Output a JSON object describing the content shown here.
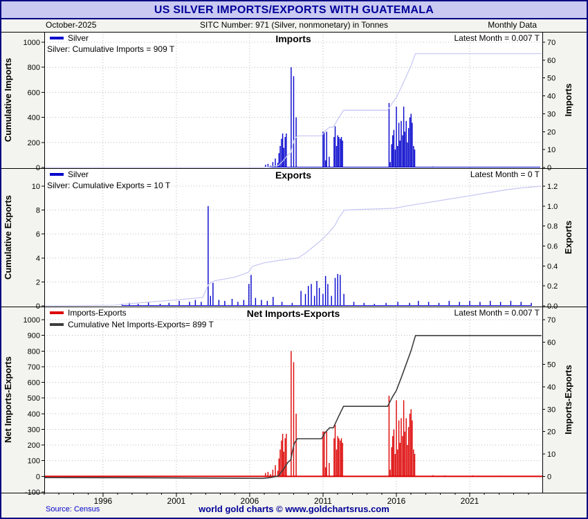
{
  "window": {
    "title": "US SILVER IMPORTS/EXPORTS WITH GUATEMALA",
    "subheader": {
      "left": "October-2025",
      "center": "SITC Number: 971 (Silver, nonmonetary) in Tonnes",
      "right": "Monthly Data"
    },
    "footer": {
      "source": "Source: Census",
      "brand": "world gold charts © www.goldchartsrus.com"
    }
  },
  "colors": {
    "accent_navy": "#000099",
    "titlebar_bg": "#c9c9f2",
    "page_bg": "#f3f3ef",
    "panel_bg": "#ffffff",
    "grid": "#b8b8b8",
    "bar_blue": "#0000cc",
    "line_lavender": "#c9c9f4",
    "bar_red": "#dd0000",
    "line_dark": "#3d3d3d"
  },
  "chart_data": {
    "type": "bar",
    "x_axis": {
      "min": 1992.0,
      "max": 2025.95,
      "ticks": [
        1996,
        2001,
        2006,
        2011,
        2016,
        2021
      ]
    },
    "panels": [
      {
        "id": "imports",
        "title": "Imports",
        "latest_label": "Latest Month = 0.007 T",
        "annotation": "Silver: Cumulative Imports = 909 T",
        "legend": [
          {
            "label": "Silver",
            "color": "#0000cc"
          }
        ],
        "left_axis": {
          "label": "Cumulative Imports",
          "min": 0,
          "max": 1000,
          "ticks": [
            0,
            200,
            400,
            600,
            800,
            1000
          ],
          "decimals": 0
        },
        "right_axis": {
          "label": "Imports",
          "min": 0,
          "max": 70,
          "ticks": [
            0,
            10,
            20,
            30,
            40,
            50,
            60,
            70
          ],
          "decimals": 0
        },
        "bar_color": "#0000cc",
        "line_color": "#c9c9f4",
        "bars": [
          [
            2007.08,
            1.5
          ],
          [
            2007.25,
            2
          ],
          [
            2007.42,
            1
          ],
          [
            2007.58,
            3
          ],
          [
            2007.75,
            5
          ],
          [
            2007.92,
            2.5
          ],
          [
            2008.0,
            8
          ],
          [
            2008.08,
            12
          ],
          [
            2008.17,
            16
          ],
          [
            2008.25,
            19
          ],
          [
            2008.33,
            11
          ],
          [
            2008.42,
            17
          ],
          [
            2008.5,
            19
          ],
          [
            2008.83,
            56
          ],
          [
            2009.0,
            51
          ],
          [
            2009.17,
            28
          ],
          [
            2011.0,
            20
          ],
          [
            2011.08,
            20
          ],
          [
            2011.17,
            4
          ],
          [
            2011.25,
            20
          ],
          [
            2011.42,
            6
          ],
          [
            2011.75,
            17
          ],
          [
            2011.83,
            23
          ],
          [
            2011.92,
            12
          ],
          [
            2012.0,
            18
          ],
          [
            2012.08,
            17
          ],
          [
            2012.17,
            16
          ],
          [
            2012.25,
            17
          ],
          [
            2012.33,
            15
          ],
          [
            2015.5,
            36
          ],
          [
            2015.58,
            3
          ],
          [
            2015.67,
            13
          ],
          [
            2015.75,
            18
          ],
          [
            2015.83,
            21
          ],
          [
            2015.92,
            10
          ],
          [
            2016.0,
            34
          ],
          [
            2016.08,
            12
          ],
          [
            2016.17,
            25
          ],
          [
            2016.25,
            15
          ],
          [
            2016.33,
            26
          ],
          [
            2016.42,
            18
          ],
          [
            2016.5,
            34
          ],
          [
            2016.58,
            20
          ],
          [
            2016.67,
            26
          ],
          [
            2016.75,
            14
          ],
          [
            2016.83,
            22
          ],
          [
            2016.92,
            28
          ],
          [
            2017.0,
            30
          ],
          [
            2017.08,
            25
          ],
          [
            2017.17,
            12
          ],
          [
            2017.25,
            10
          ],
          [
            2018.5,
            0.5
          ],
          [
            2019.3,
            0.4
          ],
          [
            2021.2,
            0.4
          ],
          [
            2023.1,
            0.3
          ],
          [
            2025.79,
            0.007
          ]
        ],
        "cumulative": [
          [
            1992.0,
            0
          ],
          [
            2006.9,
            0
          ],
          [
            2007.4,
            6
          ],
          [
            2007.95,
            15
          ],
          [
            2008.3,
            55
          ],
          [
            2008.6,
            100
          ],
          [
            2008.8,
            117
          ],
          [
            2008.92,
            173
          ],
          [
            2009.05,
            224
          ],
          [
            2009.25,
            252
          ],
          [
            2010.9,
            252
          ],
          [
            2011.15,
            292
          ],
          [
            2011.45,
            322
          ],
          [
            2011.7,
            322
          ],
          [
            2012.05,
            392
          ],
          [
            2012.4,
            457
          ],
          [
            2015.4,
            457
          ],
          [
            2015.75,
            520
          ],
          [
            2016.0,
            558
          ],
          [
            2016.35,
            644
          ],
          [
            2016.65,
            722
          ],
          [
            2017.0,
            812
          ],
          [
            2017.3,
            909
          ],
          [
            2025.9,
            909
          ]
        ]
      },
      {
        "id": "exports",
        "title": "Exports",
        "latest_label": "Latest Month = 0 T",
        "annotation": "Silver: Cumulative Exports = 10 T",
        "legend": [
          {
            "label": "Silver",
            "color": "#0000cc"
          }
        ],
        "left_axis": {
          "label": "Cumulative Exports",
          "min": 0,
          "max": 10,
          "ticks": [
            0,
            2,
            4,
            6,
            8,
            10
          ],
          "decimals": 0
        },
        "right_axis": {
          "label": "Exports",
          "min": 0,
          "max": 1.2,
          "ticks": [
            0.0,
            0.2,
            0.4,
            0.6,
            0.8,
            1.0,
            1.2
          ],
          "decimals": 1
        },
        "bar_color": "#0000cc",
        "line_color": "#c9c9f4",
        "bars": [
          [
            1997.3,
            0.02
          ],
          [
            1997.8,
            0.03
          ],
          [
            1998.4,
            0.02
          ],
          [
            1999.1,
            0.04
          ],
          [
            1999.9,
            0.02
          ],
          [
            2000.5,
            0.03
          ],
          [
            2001.2,
            0.05
          ],
          [
            2001.9,
            0.04
          ],
          [
            2002.3,
            0.06
          ],
          [
            2002.7,
            0.04
          ],
          [
            2003.17,
            1.0
          ],
          [
            2003.33,
            0.1
          ],
          [
            2003.5,
            0.23
          ],
          [
            2003.9,
            0.06
          ],
          [
            2004.3,
            0.05
          ],
          [
            2004.8,
            0.07
          ],
          [
            2005.2,
            0.04
          ],
          [
            2005.6,
            0.06
          ],
          [
            2005.95,
            0.22
          ],
          [
            2006.1,
            0.31
          ],
          [
            2006.4,
            0.08
          ],
          [
            2006.8,
            0.06
          ],
          [
            2007.2,
            0.05
          ],
          [
            2007.6,
            0.09
          ],
          [
            2008.2,
            0.04
          ],
          [
            2008.9,
            0.03
          ],
          [
            2009.5,
            0.15
          ],
          [
            2009.8,
            0.12
          ],
          [
            2010.0,
            0.2
          ],
          [
            2010.2,
            0.22
          ],
          [
            2010.42,
            0.1
          ],
          [
            2010.58,
            0.25
          ],
          [
            2010.75,
            0.18
          ],
          [
            2011.0,
            0.12
          ],
          [
            2011.17,
            0.3
          ],
          [
            2011.33,
            0.22
          ],
          [
            2011.58,
            0.1
          ],
          [
            2011.83,
            0.28
          ],
          [
            2012.0,
            0.32
          ],
          [
            2012.17,
            0.31
          ],
          [
            2012.42,
            0.12
          ],
          [
            2013.1,
            0.04
          ],
          [
            2013.8,
            0.03
          ],
          [
            2014.5,
            0.02
          ],
          [
            2015.3,
            0.03
          ],
          [
            2016.1,
            0.04
          ],
          [
            2016.9,
            0.03
          ],
          [
            2017.5,
            0.05
          ],
          [
            2018.2,
            0.04
          ],
          [
            2018.9,
            0.03
          ],
          [
            2019.6,
            0.05
          ],
          [
            2020.3,
            0.04
          ],
          [
            2021.0,
            0.05
          ],
          [
            2021.7,
            0.04
          ],
          [
            2022.4,
            0.05
          ],
          [
            2023.1,
            0.04
          ],
          [
            2023.8,
            0.05
          ],
          [
            2024.5,
            0.04
          ],
          [
            2025.2,
            0.03
          ]
        ],
        "cumulative": [
          [
            1992.0,
            0
          ],
          [
            1996.8,
            0.05
          ],
          [
            1998.0,
            0.2
          ],
          [
            1999.5,
            0.35
          ],
          [
            2001.0,
            0.5
          ],
          [
            2002.8,
            0.7
          ],
          [
            2003.2,
            1.8
          ],
          [
            2003.6,
            2.1
          ],
          [
            2005.0,
            2.4
          ],
          [
            2005.9,
            2.8
          ],
          [
            2006.2,
            3.3
          ],
          [
            2007.0,
            3.6
          ],
          [
            2008.0,
            3.8
          ],
          [
            2009.3,
            4.0
          ],
          [
            2009.8,
            4.4
          ],
          [
            2010.3,
            4.9
          ],
          [
            2010.8,
            5.4
          ],
          [
            2011.3,
            6.0
          ],
          [
            2011.8,
            6.7
          ],
          [
            2012.1,
            7.4
          ],
          [
            2012.45,
            8.0
          ],
          [
            2013.5,
            8.05
          ],
          [
            2015.9,
            8.15
          ],
          [
            2016.5,
            8.3
          ],
          [
            2017.5,
            8.5
          ],
          [
            2018.5,
            8.7
          ],
          [
            2019.5,
            8.9
          ],
          [
            2020.5,
            9.1
          ],
          [
            2021.5,
            9.3
          ],
          [
            2022.5,
            9.5
          ],
          [
            2023.5,
            9.7
          ],
          [
            2024.5,
            9.85
          ],
          [
            2025.9,
            10.0
          ]
        ]
      },
      {
        "id": "net",
        "title": "Net Imports-Exports",
        "latest_label": "Latest Month = 0.007 T",
        "annotation": null,
        "legend": [
          {
            "label": "Imports-Exports",
            "color": "#dd0000"
          },
          {
            "label": "Cumulative Net Imports-Exports= 899 T",
            "color": "#3d3d3d"
          }
        ],
        "left_axis": {
          "label": "Net Imports-Exports",
          "min": -100,
          "max": 1000,
          "ticks": [
            -100,
            0,
            100,
            200,
            300,
            400,
            500,
            600,
            700,
            800,
            900,
            1000
          ],
          "decimals": 0
        },
        "right_axis": {
          "label": "Imports-Exports",
          "min": 0,
          "max": 70,
          "ticks": [
            0,
            10,
            20,
            30,
            40,
            50,
            60,
            70
          ],
          "decimals": 0
        },
        "bar_color": "#dd0000",
        "line_color": "#3d3d3d",
        "zero_line_color": "#dd0000",
        "bars": [
          [
            2007.08,
            1.5
          ],
          [
            2007.25,
            2
          ],
          [
            2007.42,
            1
          ],
          [
            2007.58,
            3
          ],
          [
            2007.75,
            5
          ],
          [
            2007.92,
            2.5
          ],
          [
            2008.0,
            8
          ],
          [
            2008.08,
            12
          ],
          [
            2008.17,
            16
          ],
          [
            2008.25,
            19
          ],
          [
            2008.33,
            11
          ],
          [
            2008.42,
            17
          ],
          [
            2008.5,
            19
          ],
          [
            2008.83,
            56
          ],
          [
            2009.0,
            51
          ],
          [
            2009.17,
            28
          ],
          [
            2011.0,
            20
          ],
          [
            2011.08,
            20
          ],
          [
            2011.17,
            4
          ],
          [
            2011.25,
            20
          ],
          [
            2011.42,
            6
          ],
          [
            2011.75,
            17
          ],
          [
            2011.83,
            23
          ],
          [
            2011.92,
            12
          ],
          [
            2012.0,
            18
          ],
          [
            2012.08,
            17
          ],
          [
            2012.17,
            16
          ],
          [
            2012.25,
            17
          ],
          [
            2012.33,
            15
          ],
          [
            2015.5,
            36
          ],
          [
            2015.58,
            3
          ],
          [
            2015.67,
            13
          ],
          [
            2015.75,
            18
          ],
          [
            2015.83,
            21
          ],
          [
            2015.92,
            10
          ],
          [
            2016.0,
            34
          ],
          [
            2016.08,
            12
          ],
          [
            2016.17,
            25
          ],
          [
            2016.25,
            15
          ],
          [
            2016.33,
            26
          ],
          [
            2016.42,
            18
          ],
          [
            2016.5,
            34
          ],
          [
            2016.58,
            20
          ],
          [
            2016.67,
            26
          ],
          [
            2016.75,
            14
          ],
          [
            2016.83,
            22
          ],
          [
            2016.92,
            28
          ],
          [
            2017.0,
            30
          ],
          [
            2017.08,
            25
          ],
          [
            2017.17,
            12
          ],
          [
            2017.25,
            10
          ],
          [
            2018.5,
            0.5
          ],
          [
            2019.3,
            0.4
          ],
          [
            2021.2,
            0.4
          ],
          [
            2023.1,
            0.3
          ],
          [
            2025.79,
            0.007
          ]
        ],
        "cumulative": [
          [
            1992.0,
            -8
          ],
          [
            1998.0,
            -9
          ],
          [
            2003.0,
            -11
          ],
          [
            2006.9,
            -13
          ],
          [
            2007.4,
            -8
          ],
          [
            2007.95,
            2
          ],
          [
            2008.3,
            45
          ],
          [
            2008.6,
            88
          ],
          [
            2008.8,
            105
          ],
          [
            2008.92,
            161
          ],
          [
            2009.05,
            212
          ],
          [
            2009.25,
            240
          ],
          [
            2010.9,
            240
          ],
          [
            2011.15,
            280
          ],
          [
            2011.45,
            310
          ],
          [
            2011.7,
            310
          ],
          [
            2012.05,
            380
          ],
          [
            2012.4,
            447
          ],
          [
            2015.4,
            447
          ],
          [
            2015.75,
            510
          ],
          [
            2016.0,
            548
          ],
          [
            2016.35,
            634
          ],
          [
            2016.65,
            712
          ],
          [
            2017.0,
            802
          ],
          [
            2017.3,
            899
          ],
          [
            2025.9,
            899
          ]
        ]
      }
    ]
  }
}
